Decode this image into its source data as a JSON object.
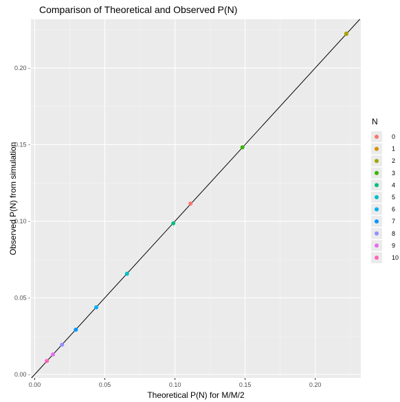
{
  "chart_data": {
    "type": "scatter",
    "title": "Comparison of Theoretical and Observed P(N)",
    "xlabel": "Theoretical P(N) for M/M/2",
    "ylabel": "Observed P(N) from simulation",
    "xlim": [
      -0.0027,
      0.2325
    ],
    "ylim": [
      -0.0023,
      0.2318
    ],
    "x_ticks": [
      0.0,
      0.05,
      0.1,
      0.15,
      0.2
    ],
    "x_tick_labels": [
      "0.00",
      "0.05",
      "0.10",
      "0.15",
      "0.20"
    ],
    "y_ticks": [
      0.0,
      0.05,
      0.1,
      0.15,
      0.2
    ],
    "y_tick_labels": [
      "0.00 -",
      "0.05 -",
      "0.10 -",
      "0.15 -",
      "0.20 -"
    ],
    "grid": true,
    "reference_line": {
      "type": "identity",
      "slope": 1,
      "intercept": 0
    },
    "legend": {
      "title": "N",
      "position": "right",
      "entries": [
        {
          "label": "0",
          "color": "#F8766D"
        },
        {
          "label": "1",
          "color": "#D89000"
        },
        {
          "label": "2",
          "color": "#A3A500"
        },
        {
          "label": "3",
          "color": "#39B600"
        },
        {
          "label": "4",
          "color": "#00BF7D"
        },
        {
          "label": "5",
          "color": "#00BFC4"
        },
        {
          "label": "6",
          "color": "#00B0F6"
        },
        {
          "label": "7",
          "color": "#0096FF"
        },
        {
          "label": "8",
          "color": "#9590FF"
        },
        {
          "label": "9",
          "color": "#E76BF3"
        },
        {
          "label": "10",
          "color": "#FF62BC"
        }
      ]
    },
    "points": [
      {
        "N": "0",
        "x": 0.1111,
        "y": 0.1115,
        "color": "#F8766D"
      },
      {
        "N": "1",
        "x": 0.2222,
        "y": 0.2225,
        "color": "#D89000"
      },
      {
        "N": "2",
        "x": 0.2222,
        "y": 0.2222,
        "color": "#A3A500"
      },
      {
        "N": "3",
        "x": 0.1481,
        "y": 0.1482,
        "color": "#39B600"
      },
      {
        "N": "4",
        "x": 0.0988,
        "y": 0.0986,
        "color": "#00BF7D"
      },
      {
        "N": "5",
        "x": 0.0658,
        "y": 0.0657,
        "color": "#00BFC4"
      },
      {
        "N": "6",
        "x": 0.0439,
        "y": 0.0438,
        "color": "#00B0F6"
      },
      {
        "N": "7",
        "x": 0.0293,
        "y": 0.0292,
        "color": "#0096FF"
      },
      {
        "N": "8",
        "x": 0.0195,
        "y": 0.0194,
        "color": "#9590FF"
      },
      {
        "N": "9",
        "x": 0.013,
        "y": 0.013,
        "color": "#E76BF3"
      },
      {
        "N": "10",
        "x": 0.0087,
        "y": 0.0088,
        "color": "#FF62BC"
      }
    ],
    "colors": {
      "panel_background": "#EBEBEB",
      "grid_major": "#FFFFFF",
      "grid_minor": "#F5F5F5",
      "reference_line": "#000000",
      "text": "#000000",
      "tick_text": "#4D4D4D"
    }
  }
}
